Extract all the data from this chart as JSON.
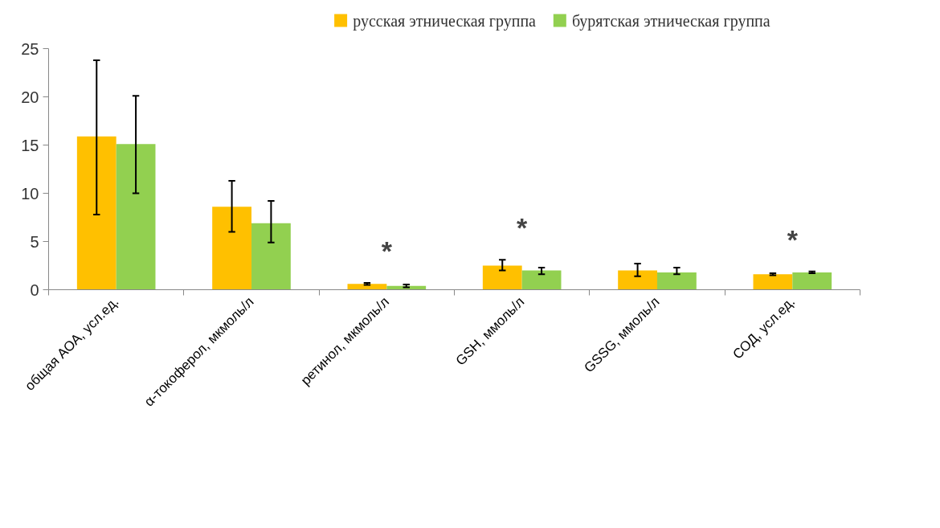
{
  "chart_data": {
    "type": "bar",
    "categories": [
      "общая АОА, усл.ед.",
      "α-токоферол, мкмоль/л",
      "ретинол, мкмоль/л",
      "GSH, ммоль/л",
      "GSSG, ммоль/л",
      "СОД, усл.ед."
    ],
    "series": [
      {
        "name": "русская этническая группа",
        "color": "#ffc000",
        "values": [
          15.9,
          8.6,
          0.6,
          2.5,
          2.0,
          1.6
        ],
        "errors": [
          [
            7.8,
            23.8
          ],
          [
            6.0,
            11.3
          ],
          0.1,
          [
            2.0,
            3.1
          ],
          [
            1.4,
            2.7
          ],
          0.1
        ]
      },
      {
        "name": "бурятская этническая группа",
        "color": "#92d050",
        "values": [
          15.1,
          6.9,
          0.4,
          2.0,
          1.8,
          1.8
        ],
        "errors": [
          [
            10.0,
            20.1
          ],
          [
            4.9,
            9.2
          ],
          0.15,
          [
            1.6,
            2.3
          ],
          [
            1.6,
            2.3
          ],
          0.1
        ]
      }
    ],
    "ylim": [
      0,
      25
    ],
    "yticks": [
      0,
      5,
      10,
      15,
      20,
      25
    ],
    "grid": false,
    "legend": "top",
    "annotations": [
      "*",
      "*",
      "*"
    ]
  }
}
